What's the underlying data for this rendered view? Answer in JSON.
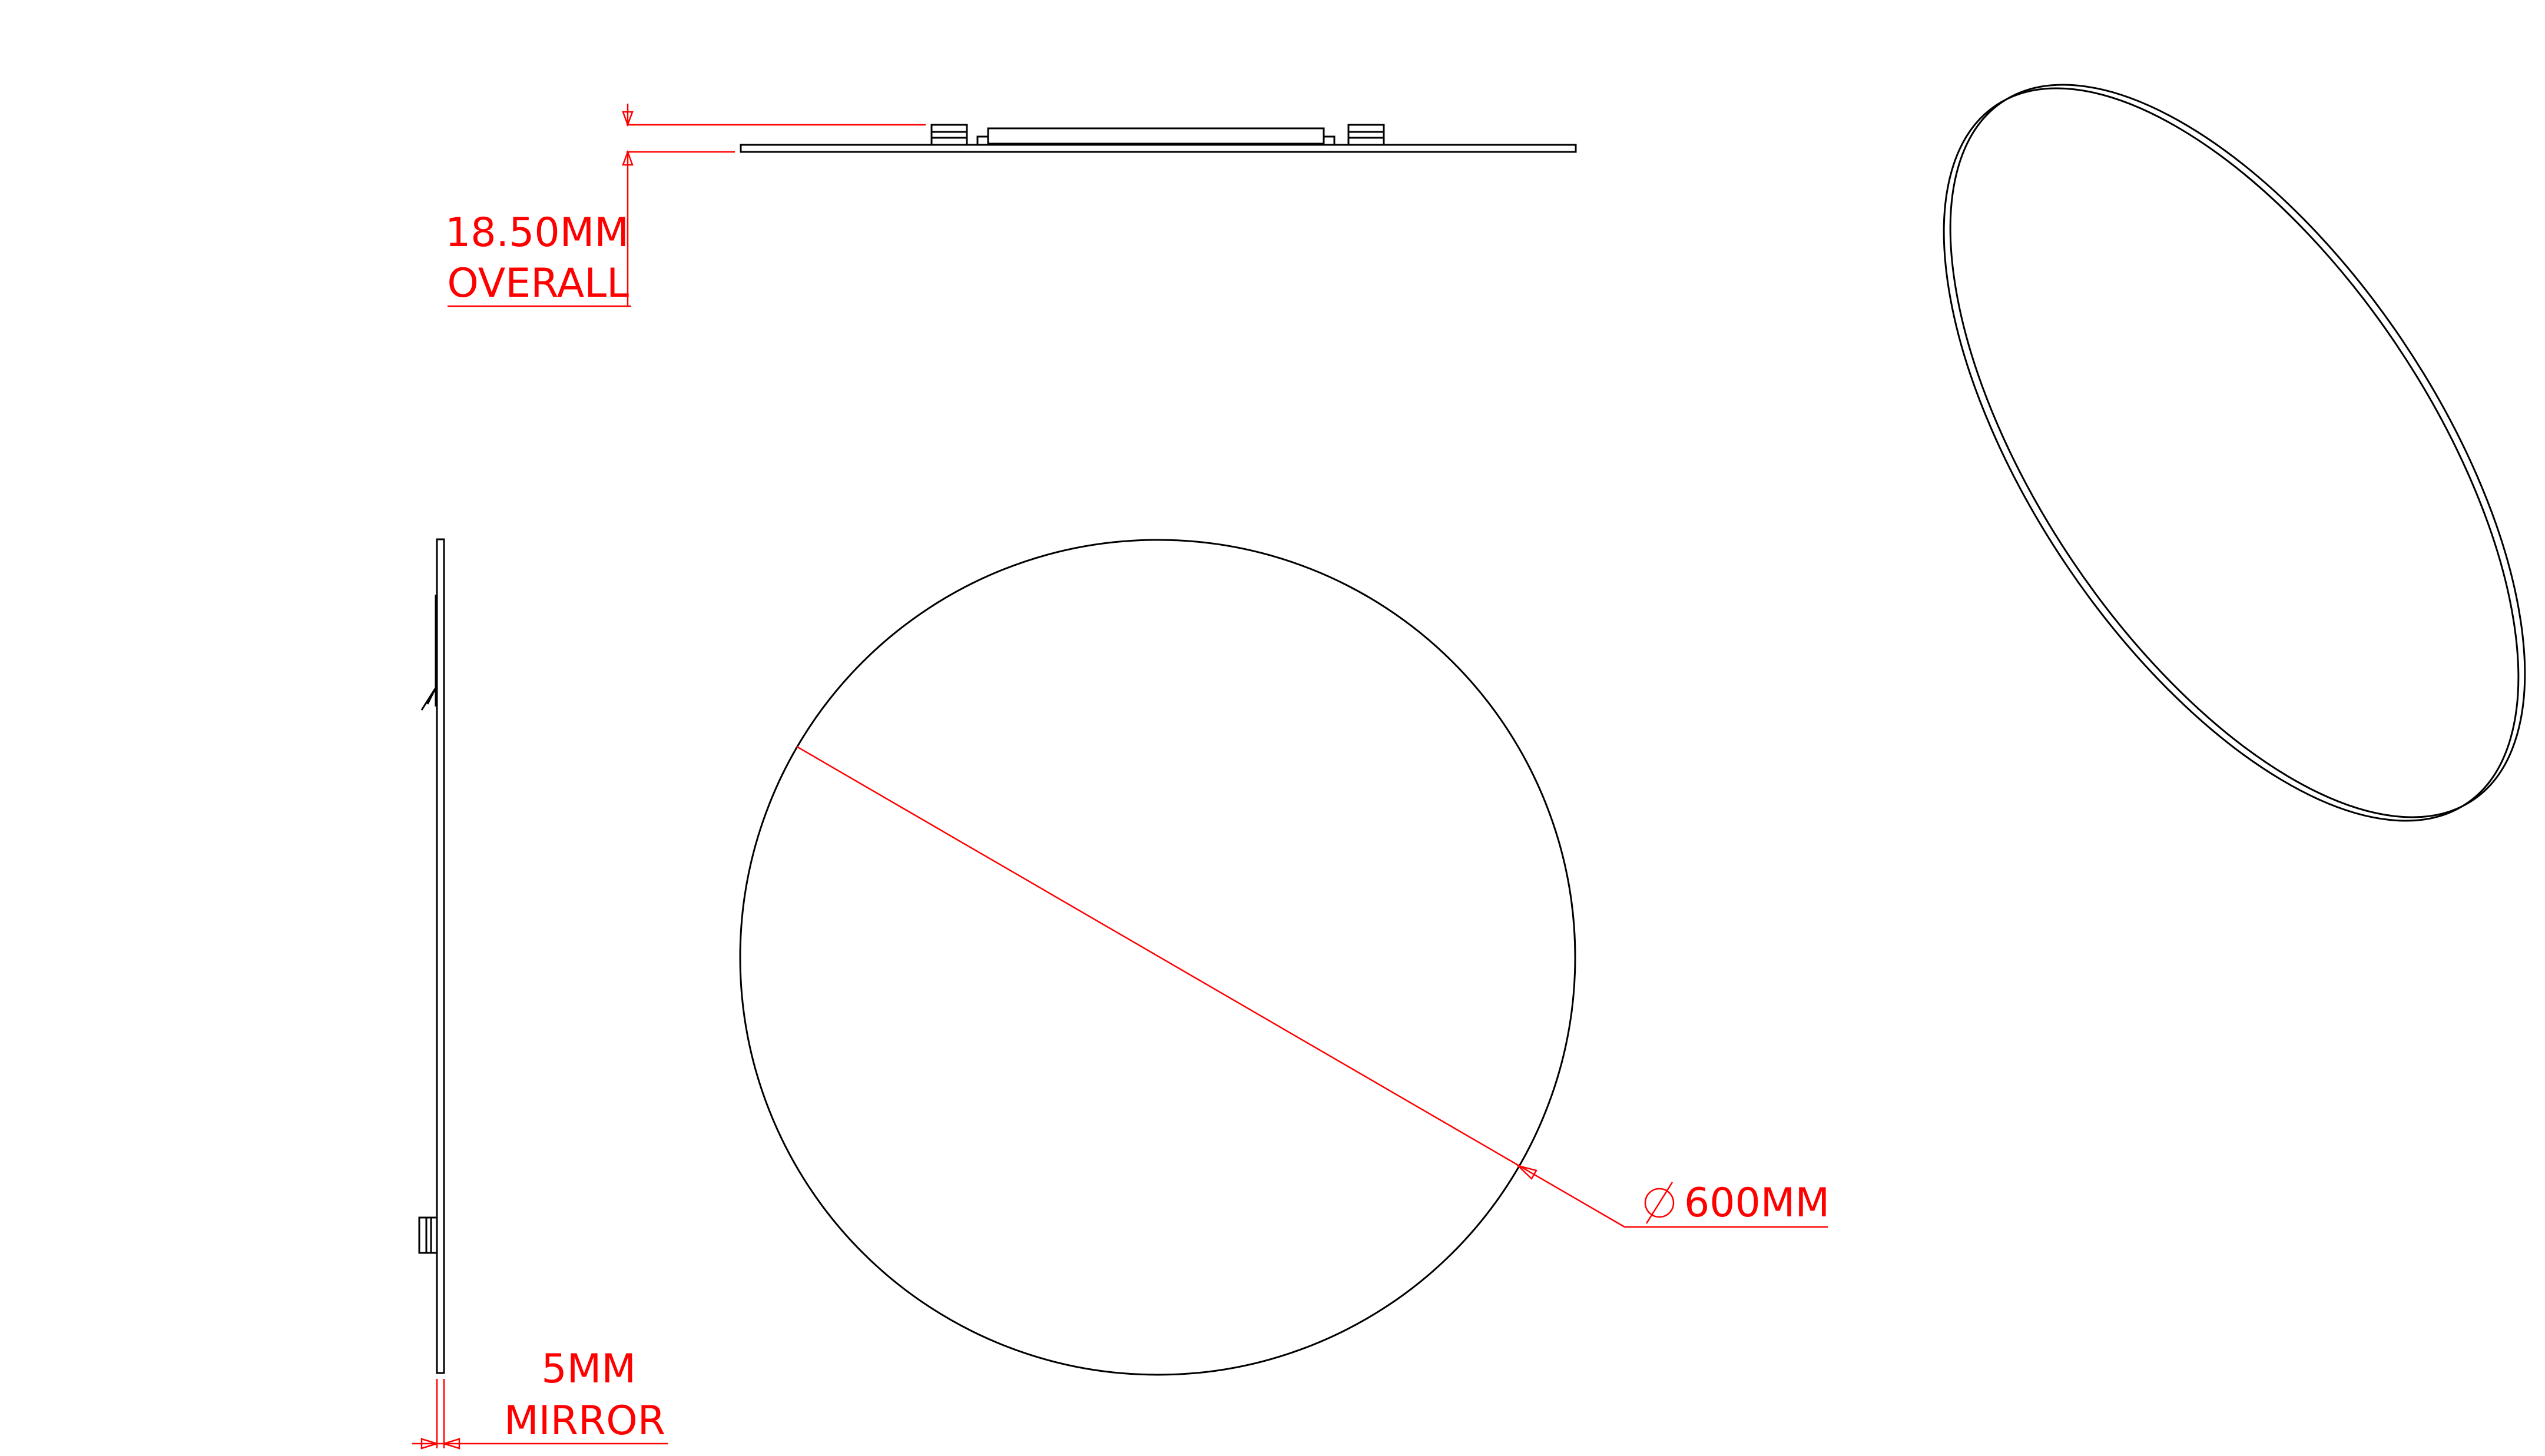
{
  "colors": {
    "object_line": "#000000",
    "dimension": "#ff0000",
    "background": "#ffffff"
  },
  "dimensions": {
    "overall_depth": {
      "value": "18.50MM",
      "label": "OVERALL"
    },
    "mirror_thickness": {
      "value": "5MM",
      "label": "MIRROR"
    },
    "diameter": {
      "symbol": "∅",
      "value": "600MM"
    }
  }
}
